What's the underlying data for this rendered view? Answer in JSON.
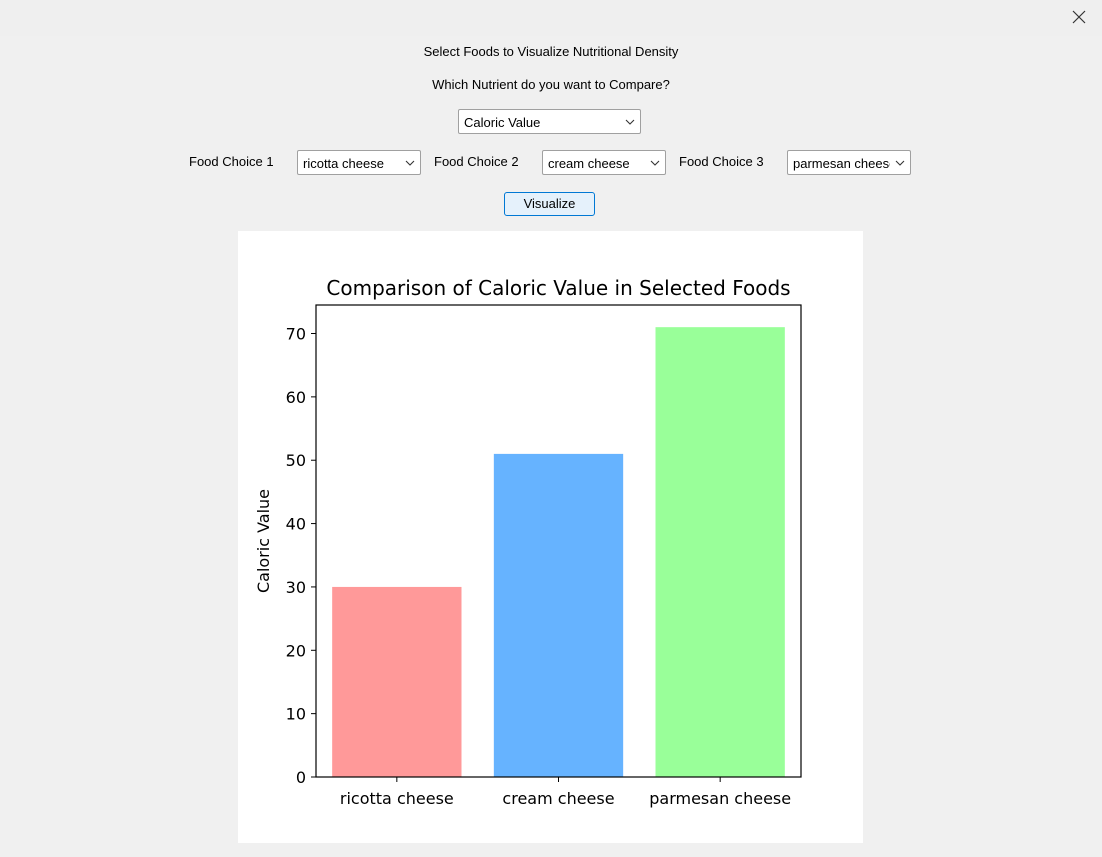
{
  "window": {
    "close_icon": "close-icon"
  },
  "header": {
    "title": "Select Foods to Visualize Nutritional Density",
    "question": "Which Nutrient do you want to Compare?"
  },
  "nutrient_select": {
    "value": "Caloric Value"
  },
  "food_choices": [
    {
      "label": "Food Choice 1",
      "value": "ricotta cheese"
    },
    {
      "label": "Food Choice 2",
      "value": "cream cheese"
    },
    {
      "label": "Food Choice 3",
      "value": "parmesan cheese"
    }
  ],
  "visualize_label": "Visualize",
  "chart_data": {
    "type": "bar",
    "title": "Comparison of Caloric Value in Selected Foods",
    "xlabel": "",
    "ylabel": "Caloric Value",
    "categories": [
      "ricotta cheese",
      "cream cheese",
      "parmesan cheese"
    ],
    "values": [
      30,
      51,
      71
    ],
    "colors": [
      "#ff9999",
      "#66b3ff",
      "#99ff99"
    ],
    "ylim": [
      0,
      74.5
    ],
    "yticks": [
      0,
      10,
      20,
      30,
      40,
      50,
      60,
      70
    ],
    "grid": false
  }
}
